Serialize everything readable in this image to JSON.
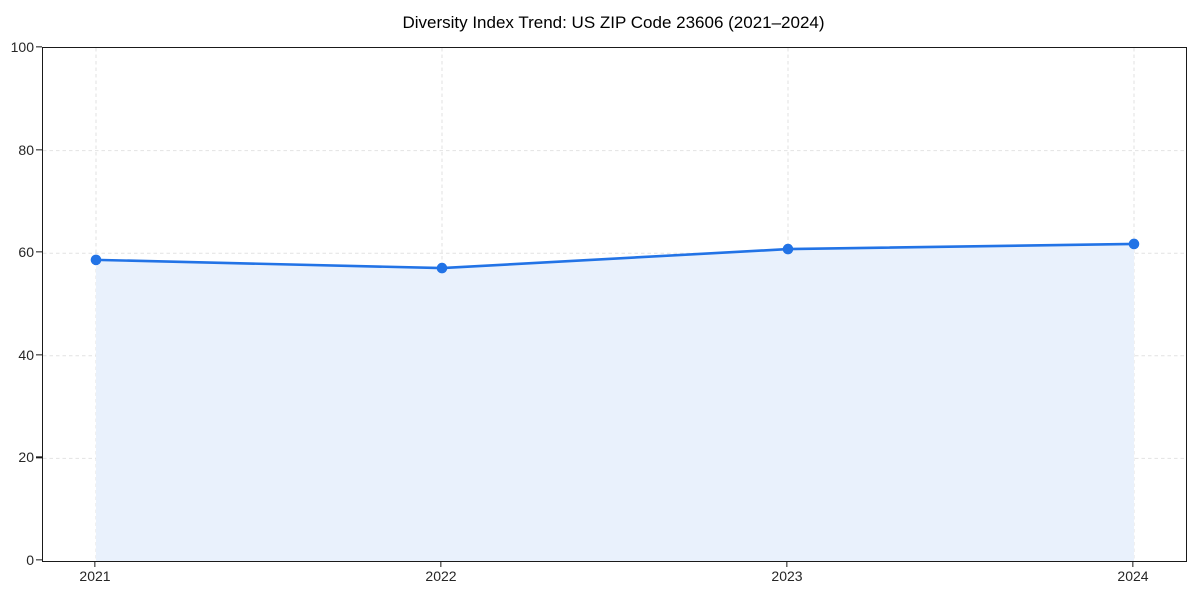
{
  "chart_data": {
    "type": "area",
    "title": "Diversity Index Trend: US ZIP Code 23606 (2021–2024)",
    "x": [
      2021,
      2022,
      2023,
      2024
    ],
    "x_tick_labels": [
      "2021",
      "2022",
      "2023",
      "2024"
    ],
    "series": [
      {
        "name": "Diversity Index",
        "values": [
          58.7,
          57.1,
          60.8,
          61.8
        ]
      }
    ],
    "xlabel": "",
    "ylabel": "",
    "ylim": [
      0,
      100
    ],
    "yticks": [
      0,
      20,
      40,
      60,
      80,
      100
    ],
    "grid": true,
    "grid_style": "dashed",
    "legend_position": "none",
    "marker": "circle",
    "colors": {
      "line": "#2273e6",
      "marker": "#2273e6",
      "fill": "#e9f1fc",
      "grid": "#e2e2e2",
      "axis": "#1a1a1a",
      "text": "#262626"
    }
  }
}
